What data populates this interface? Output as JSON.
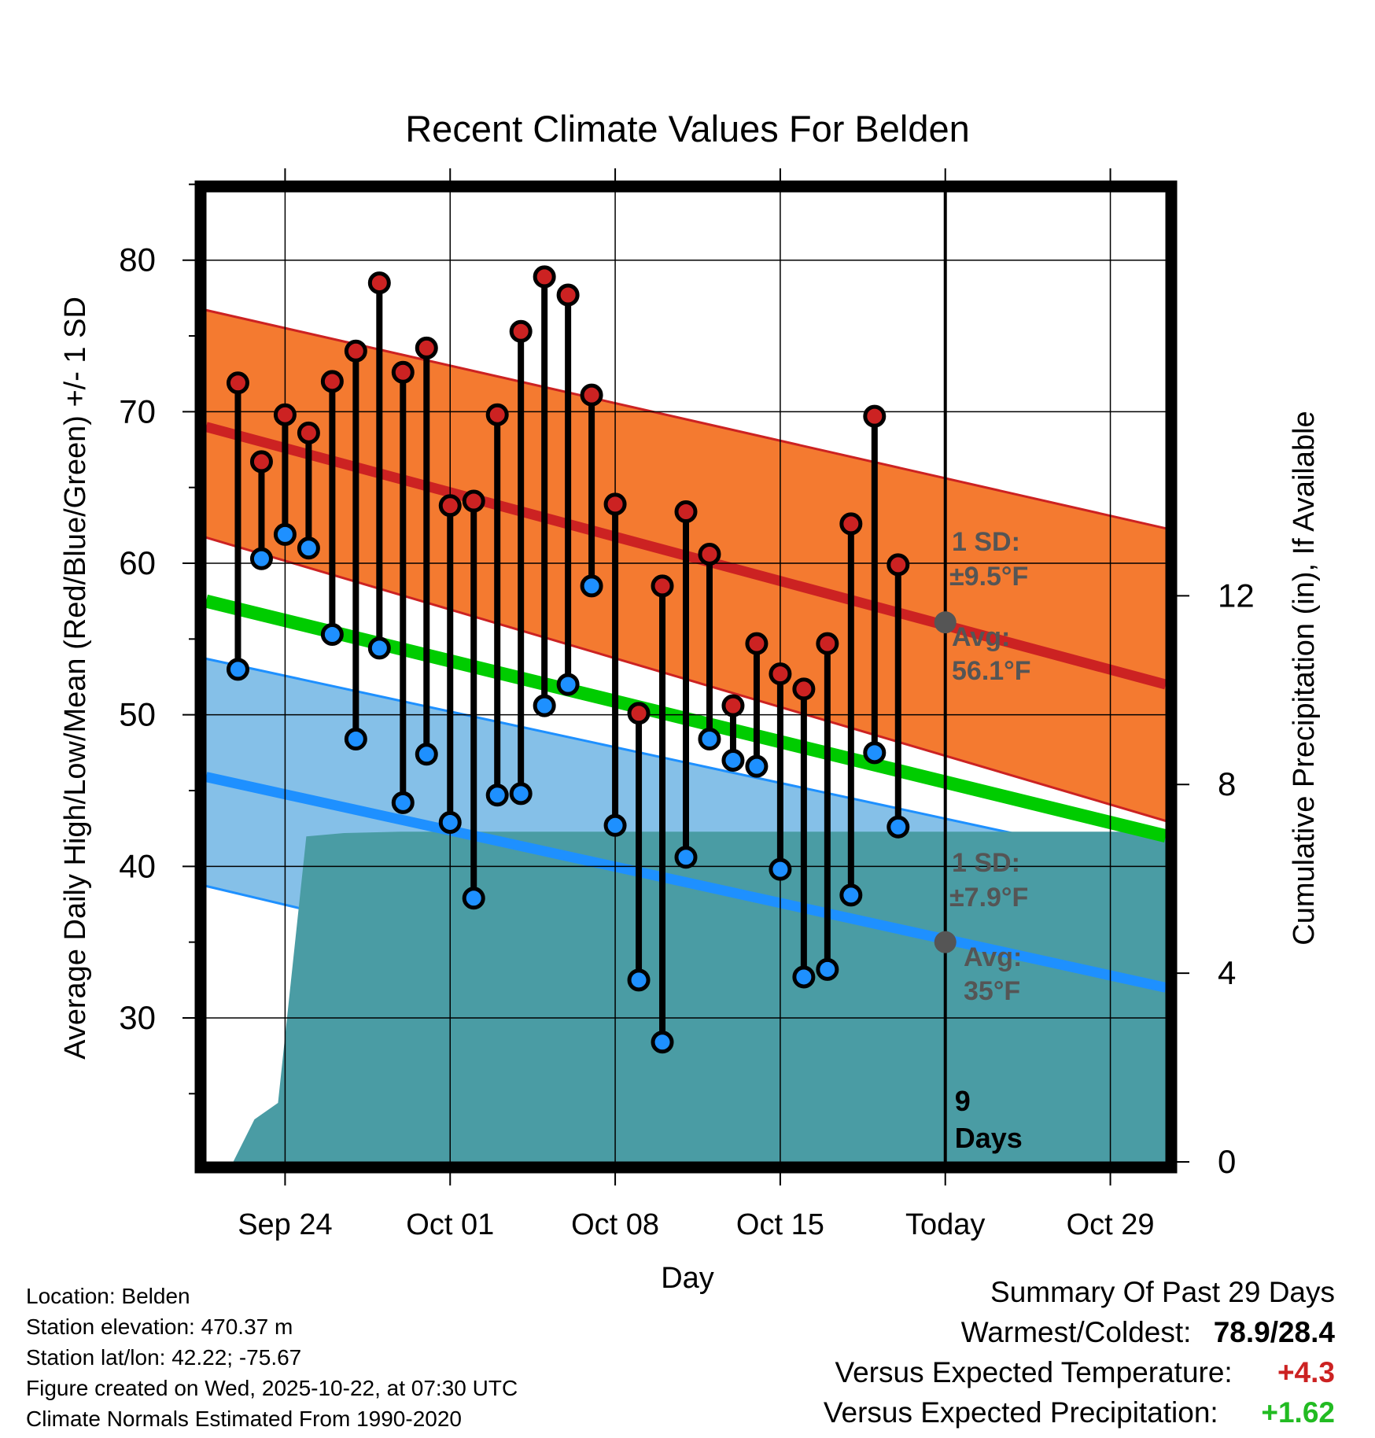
{
  "chart_data": {
    "type": "line",
    "title": "Recent Climate Values For Belden",
    "xlabel": "Day",
    "ylabel": "Average Daily High/Low/Mean (Red/Blue/Green) +/- 1 SD",
    "y2label": "Cumulative Precipitation (in), If Available",
    "xlim": [
      -3.35,
      37.35
    ],
    "ylim": [
      20.5,
      84.5
    ],
    "y2lim": [
      0,
      20.56
    ],
    "yticks": [
      30,
      40,
      50,
      60,
      70,
      80
    ],
    "y2ticks": [
      0,
      4,
      8,
      12
    ],
    "xticks": [
      {
        "x": 0,
        "label": "Sep 24"
      },
      {
        "x": 7,
        "label": "Oct 01"
      },
      {
        "x": 14,
        "label": "Oct 08"
      },
      {
        "x": 21,
        "label": "Oct 15"
      },
      {
        "x": 28,
        "label": "Today"
      },
      {
        "x": 35,
        "label": "Oct 29"
      }
    ],
    "days": [
      -2,
      -1,
      0,
      1,
      2,
      3,
      4,
      5,
      6,
      7,
      8,
      9,
      10,
      11,
      12,
      13,
      14,
      15,
      16,
      17,
      18,
      19,
      20,
      21,
      22,
      23,
      24,
      25,
      26
    ],
    "highs": [
      71.9,
      66.7,
      69.8,
      68.6,
      72.0,
      74.0,
      78.5,
      72.6,
      74.2,
      63.8,
      64.1,
      69.8,
      75.3,
      78.9,
      77.7,
      71.1,
      63.9,
      50.1,
      58.5,
      63.4,
      60.6,
      50.6,
      54.7,
      52.7,
      51.7,
      54.7,
      62.6,
      69.7,
      59.9
    ],
    "lows": [
      53.0,
      60.3,
      61.9,
      61.0,
      55.3,
      48.4,
      54.4,
      44.2,
      47.4,
      42.9,
      37.9,
      44.7,
      44.8,
      50.6,
      52.0,
      58.5,
      42.7,
      32.5,
      28.4,
      40.6,
      48.4,
      47.0,
      46.6,
      39.8,
      32.7,
      33.2,
      38.1,
      47.5,
      42.6
    ],
    "normal_high": {
      "start": [
        -3.35,
        69.0
      ],
      "end": [
        37.35,
        52.0
      ]
    },
    "normal_high_band": {
      "upper": [
        [
          -3.35,
          76.7
        ],
        [
          37.35,
          62.3
        ]
      ],
      "lower": [
        [
          -3.35,
          61.7
        ],
        [
          37.35,
          43.0
        ]
      ]
    },
    "normal_mean": {
      "start": [
        -3.35,
        57.5
      ],
      "end": [
        37.35,
        42.0
      ]
    },
    "normal_low": {
      "start": [
        -3.35,
        45.9
      ],
      "end": [
        37.35,
        32.0
      ]
    },
    "normal_low_band": {
      "upper": [
        [
          -3.35,
          53.7
        ],
        [
          37.35,
          40.0
        ]
      ],
      "lower": [
        [
          -3.35,
          38.7
        ],
        [
          37.35,
          23.7
        ]
      ]
    },
    "precip_cumulative": [
      [
        -2.2,
        0
      ],
      [
        -1.3,
        0.9
      ],
      [
        -0.3,
        1.25
      ],
      [
        0.9,
        6.9
      ],
      [
        2.5,
        6.97
      ],
      [
        5,
        7.0
      ],
      [
        37.35,
        7.0
      ]
    ],
    "today_marker": {
      "x": 28,
      "label_line1": "9",
      "label_line2": "Days",
      "high_sd_title": "1 SD:",
      "high_sd_value": "±9.5°F",
      "high_avg_title": "Avg:",
      "high_avg_value": "56.1°F",
      "high_avg": 56.1,
      "low_sd_title": "1 SD:",
      "low_sd_value": "±7.9°F",
      "low_avg_title": "Avg:",
      "low_avg_value": "35°F",
      "low_avg": 35.0
    },
    "colors": {
      "high": "#cc2222",
      "low": "#1e90ff",
      "mean": "#00cc00",
      "high_band": "#f47a30",
      "low_band": "#85c0e8",
      "precip": "#4a9ca4",
      "marker_gray": "#555555"
    }
  },
  "info": {
    "location": "Location: Belden",
    "elevation": "Station elevation: 470.37 m",
    "latlon": "Station lat/lon: 42.22; -75.67",
    "created": "Figure created on Wed, 2025-10-22, at 07:30 UTC",
    "normals": "Climate Normals Estimated From 1990-2020"
  },
  "summary": {
    "title": "Summary Of Past 29 Days",
    "warm_cold_label": "Warmest/Coldest:",
    "warm_cold_value": "78.9/28.4",
    "temp_label": "Versus Expected Temperature:",
    "temp_value": "+4.3",
    "temp_color": "#cc2222",
    "precip_label": "Versus Expected Precipitation:",
    "precip_value": "+1.62",
    "precip_color": "#22bb22"
  }
}
